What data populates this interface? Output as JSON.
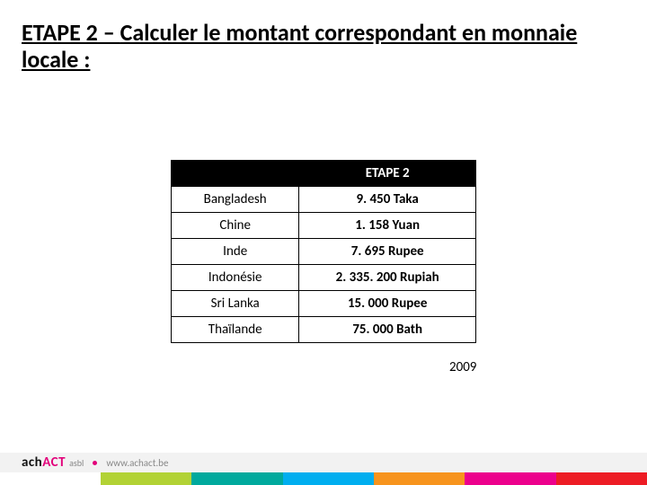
{
  "title_prefix": "ETAPE 2 – ",
  "title_rest": "Calculer le montant correspondant en monnaie locale :",
  "table": {
    "header_empty": "",
    "header_value": "ETAPE 2",
    "rows": [
      {
        "country": "Bangladesh",
        "value": "9. 450 Taka"
      },
      {
        "country": "Chine",
        "value": "1. 158 Yuan"
      },
      {
        "country": "Inde",
        "value": "7. 695 Rupee"
      },
      {
        "country": "Indonésie",
        "value": "2. 335. 200 Rupiah"
      },
      {
        "country": "Sri Lanka",
        "value": "15. 000 Rupee"
      },
      {
        "country": "Thaïlande",
        "value": "75. 000 Bath"
      }
    ]
  },
  "year": "2009",
  "footer": {
    "logo_ach": "ach",
    "logo_act": "ACT",
    "logo_suffix": "asbl",
    "url": "www.achact.be",
    "stripe_colors": [
      "#b2d235",
      "#00a99d",
      "#00aeef",
      "#f7941d",
      "#ec008c",
      "#ed1c24"
    ]
  }
}
